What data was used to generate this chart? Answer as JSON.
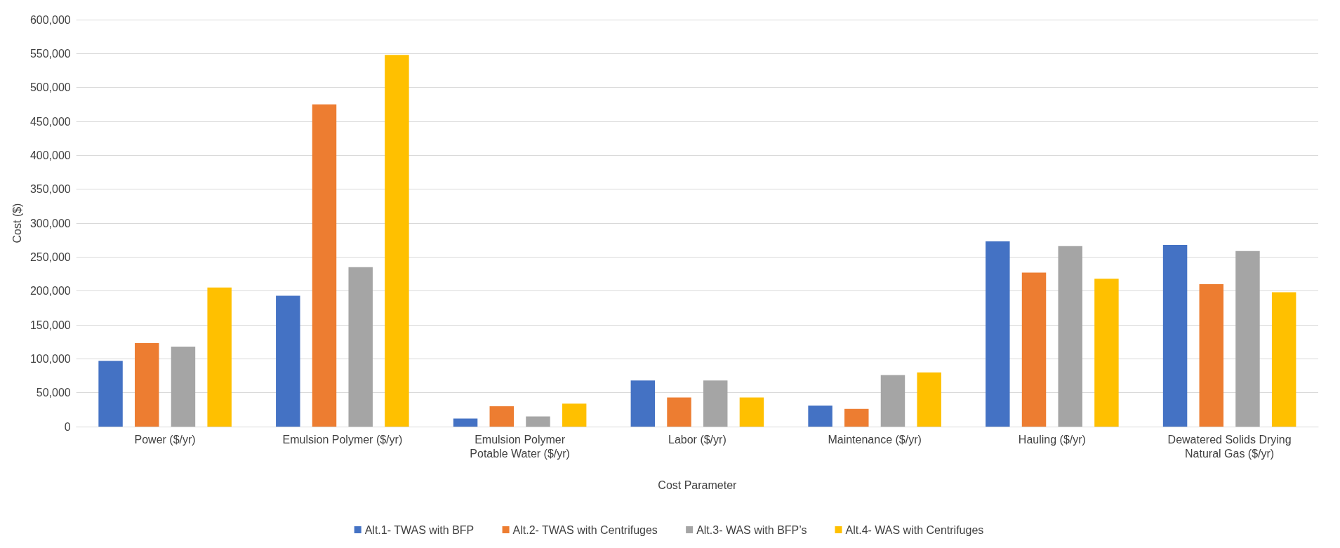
{
  "chart_data": {
    "type": "bar",
    "xlabel": "Cost Parameter",
    "ylabel": "Cost ($)",
    "categories": [
      "Power ($/yr)",
      "Emulsion Polymer ($/yr)",
      "Emulsion Polymer\nPotable Water ($/yr)",
      "Labor ($/yr)",
      "Maintenance ($/yr)",
      "Hauling ($/yr)",
      "Dewatered Solids Drying\nNatural Gas ($/yr)"
    ],
    "series": [
      {
        "name": "Alt.1- TWAS with BFP",
        "color": "#4472c4",
        "values": [
          97000,
          193000,
          12000,
          68000,
          31000,
          273000,
          268000
        ]
      },
      {
        "name": "Alt.2- TWAS with Centrifuges",
        "color": "#ed7d31",
        "values": [
          123000,
          475000,
          30000,
          43000,
          26000,
          227000,
          210000
        ]
      },
      {
        "name": "Alt.3- WAS with BFP’s",
        "color": "#a5a5a5",
        "values": [
          118000,
          235000,
          15000,
          68000,
          76000,
          266000,
          259000
        ]
      },
      {
        "name": "Alt.4- WAS with Centrifuges",
        "color": "#ffc000",
        "values": [
          205000,
          548000,
          34000,
          43000,
          80000,
          218000,
          198000
        ]
      }
    ],
    "ylim": [
      0,
      600000
    ],
    "yticks": [
      0,
      {
        "value": 50000,
        "label": "50,000"
      },
      {
        "value": 100000,
        "label": "100,000"
      },
      {
        "value": 150000,
        "label": "150,000"
      },
      {
        "value": 200000,
        "label": "200,000"
      },
      {
        "value": 250000,
        "label": "250,000"
      },
      {
        "value": 300000,
        "label": "300,000"
      },
      {
        "value": 350000,
        "label": "350,000"
      },
      {
        "value": 400000,
        "label": "400,000"
      },
      {
        "value": 450000,
        "label": "450,000"
      },
      {
        "value": 500000,
        "label": "500,000"
      },
      {
        "value": 550000,
        "label": "550,000"
      },
      {
        "value": 600000,
        "label": "600,000"
      }
    ],
    "grid": "y",
    "legend": "bottom"
  }
}
